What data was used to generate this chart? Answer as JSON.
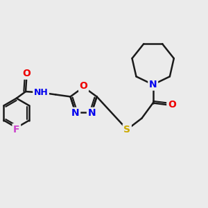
{
  "bg_color": "#ebebeb",
  "bond_color": "#1a1a1a",
  "bond_width": 1.8,
  "atom_colors": {
    "N": "#0000ee",
    "O": "#ee0000",
    "S": "#ccaa00",
    "F": "#cc44cc",
    "C": "#1a1a1a"
  },
  "fs_large": 10,
  "fs_medium": 9,
  "fs_small": 8
}
